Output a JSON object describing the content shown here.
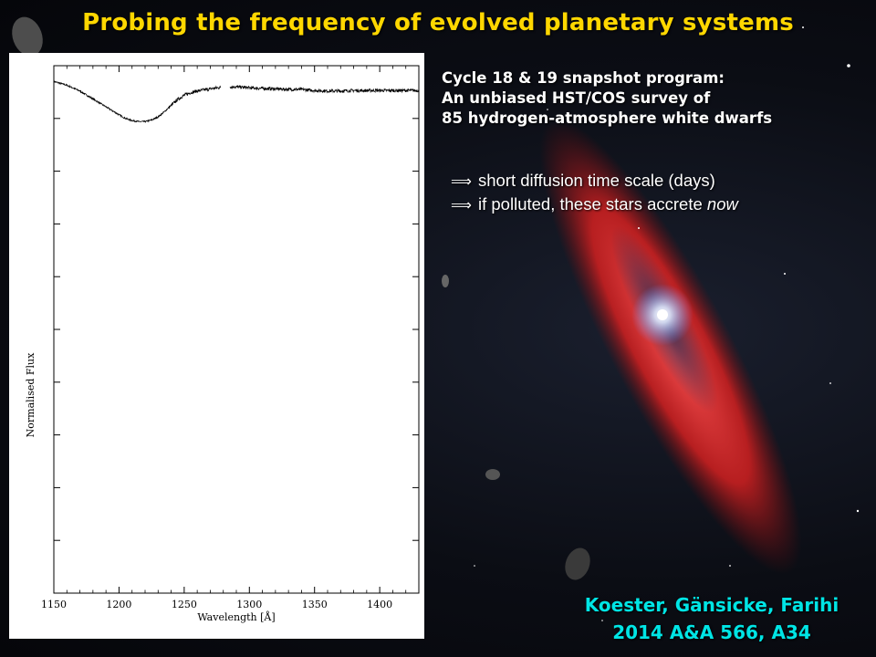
{
  "slide": {
    "title": "Probing the frequency of evolved planetary systems",
    "survey_lines": [
      "Cycle 18 & 19 snapshot program:",
      "An unbiased HST/COS survey of",
      "85 hydrogen-atmosphere white dwarfs"
    ],
    "bullets": {
      "first": "short diffusion time scale (days)",
      "second_prefix": "if polluted, these stars accrete ",
      "second_emph": "now",
      "arrow_glyph": "⟹"
    },
    "citation": {
      "line1": "Koester, Gänsicke, Farihi",
      "line2": "2014 A&A 566, A34"
    },
    "colors": {
      "title": "#ffd700",
      "citation": "#00e5e5",
      "disc": "#d42020",
      "star": "#ffffff"
    },
    "decorations": [
      "debris-disc",
      "white-dwarf-star",
      "asteroids",
      "background-stars"
    ]
  },
  "chart_data": {
    "type": "line",
    "xlabel": "Wavelength [Å]",
    "ylabel": "Normalised Flux",
    "xlim": [
      1150,
      1430
    ],
    "ylim": [
      0,
      1
    ],
    "xticks": [
      1150,
      1200,
      1250,
      1300,
      1350,
      1400
    ],
    "y_tick_count": 10,
    "grid": false,
    "series": [
      {
        "x": [
          1150,
          1160,
          1170,
          1180,
          1190,
          1200,
          1205,
          1210,
          1215,
          1220,
          1225,
          1230,
          1235,
          1240,
          1245,
          1250,
          1255,
          1260,
          1265,
          1270,
          1275,
          1278,
          1285,
          1290,
          1300,
          1310,
          1320,
          1330,
          1340,
          1350,
          1360,
          1370,
          1380,
          1390,
          1400,
          1410,
          1420,
          1430
        ],
        "y": [
          0.97,
          0.963,
          0.952,
          0.937,
          0.922,
          0.907,
          0.9,
          0.896,
          0.894,
          0.894,
          0.897,
          0.903,
          0.913,
          0.925,
          0.936,
          0.944,
          0.949,
          0.952,
          0.954,
          0.956,
          0.958,
          0.959,
          0.96,
          0.96,
          0.958,
          0.957,
          0.956,
          0.955,
          0.955,
          0.953,
          0.952,
          0.952,
          0.953,
          0.953,
          0.953,
          0.953,
          0.953,
          0.953
        ]
      }
    ],
    "gap": [
      1278,
      1285
    ]
  }
}
